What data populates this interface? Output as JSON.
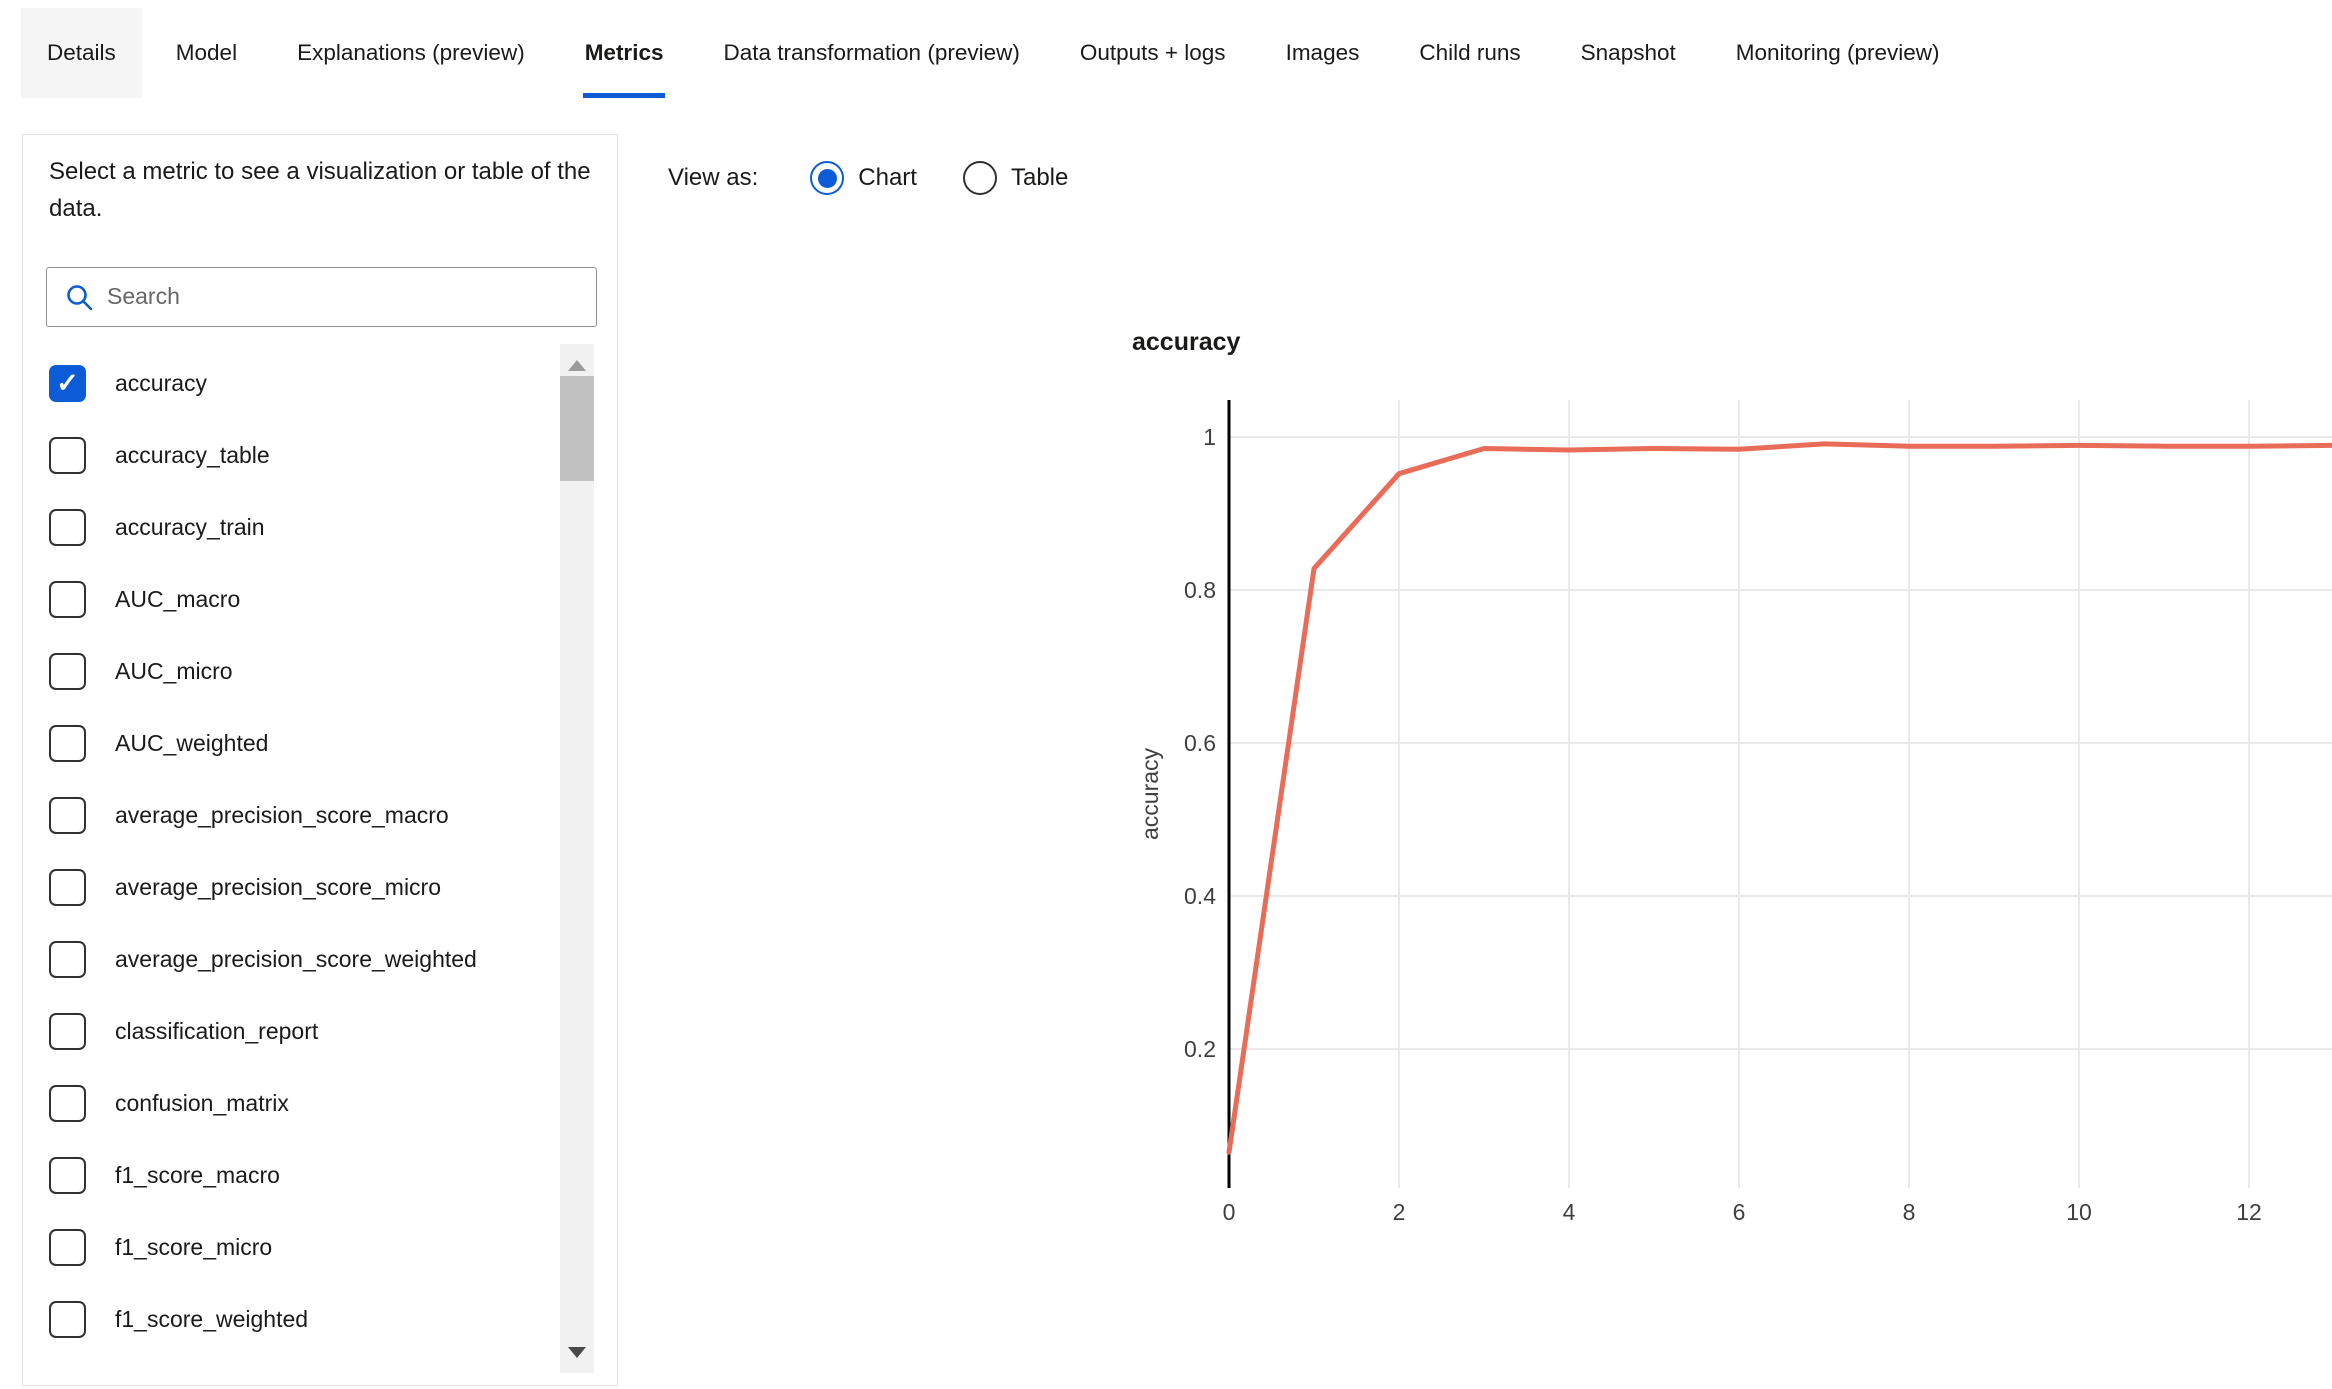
{
  "tabs": [
    {
      "label": "Details",
      "highlighted": true
    },
    {
      "label": "Model"
    },
    {
      "label": "Explanations (preview)"
    },
    {
      "label": "Metrics",
      "active": true
    },
    {
      "label": "Data transformation (preview)"
    },
    {
      "label": "Outputs + logs"
    },
    {
      "label": "Images"
    },
    {
      "label": "Child runs"
    },
    {
      "label": "Snapshot"
    },
    {
      "label": "Monitoring (preview)"
    }
  ],
  "metric_panel": {
    "instruction": "Select a metric to see a visualization or table of the data.",
    "search_placeholder": "Search",
    "metrics": [
      {
        "label": "accuracy",
        "checked": true
      },
      {
        "label": "accuracy_table",
        "checked": false
      },
      {
        "label": "accuracy_train",
        "checked": false
      },
      {
        "label": "AUC_macro",
        "checked": false
      },
      {
        "label": "AUC_micro",
        "checked": false
      },
      {
        "label": "AUC_weighted",
        "checked": false
      },
      {
        "label": "average_precision_score_macro",
        "checked": false
      },
      {
        "label": "average_precision_score_micro",
        "checked": false
      },
      {
        "label": "average_precision_score_weighted",
        "checked": false
      },
      {
        "label": "classification_report",
        "checked": false
      },
      {
        "label": "confusion_matrix",
        "checked": false
      },
      {
        "label": "f1_score_macro",
        "checked": false
      },
      {
        "label": "f1_score_micro",
        "checked": false
      },
      {
        "label": "f1_score_weighted",
        "checked": false
      }
    ]
  },
  "view_as": {
    "label": "View as:",
    "options": [
      {
        "label": "Chart",
        "selected": true
      },
      {
        "label": "Table",
        "selected": false
      }
    ]
  },
  "chart_data": {
    "type": "line",
    "title": "accuracy",
    "xlabel": "",
    "ylabel": "accuracy",
    "x": [
      0,
      1,
      2,
      3,
      4,
      5,
      6,
      7,
      8,
      9,
      10,
      11,
      12,
      13
    ],
    "series": [
      {
        "name": "accuracy",
        "values": [
          0.065,
          0.828,
          0.952,
          0.985,
          0.983,
          0.985,
          0.984,
          0.991,
          0.988,
          0.988,
          0.989,
          0.988,
          0.988,
          0.989
        ]
      }
    ],
    "x_ticks": [
      0,
      2,
      4,
      6,
      8,
      10,
      12
    ],
    "y_ticks": [
      0.2,
      0.4,
      0.6,
      0.8,
      1
    ],
    "xlim": [
      0,
      13
    ],
    "ylim": [
      0,
      1.05
    ],
    "grid": true,
    "legend": "none",
    "line_color": "#e86c57"
  },
  "colors": {
    "accent": "#0b5cd6",
    "line": "#e86c57",
    "gridline": "#e9e9e9",
    "axis": "#000000"
  }
}
